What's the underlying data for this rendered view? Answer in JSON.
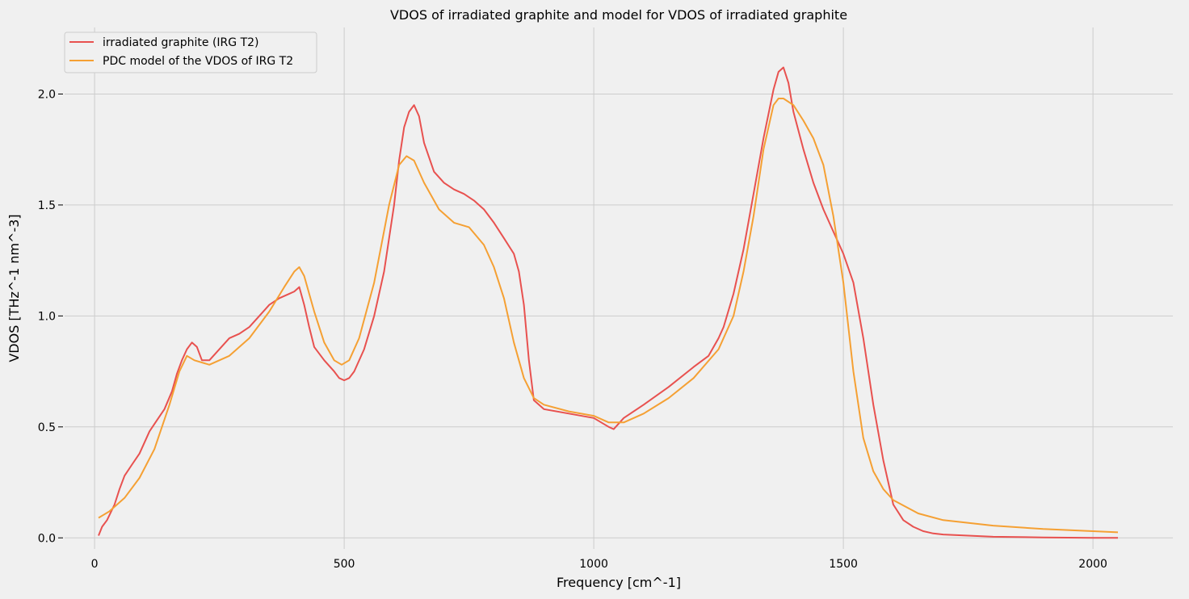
{
  "chart_data": {
    "type": "line",
    "title": "VDOS of irradiated graphite and model for VDOS of irradiated graphite",
    "xlabel": "Frequency [cm^-1]",
    "ylabel": "VDOS [THz^-1 nm^-3]",
    "xlim": [
      -60,
      2160
    ],
    "ylim": [
      -0.05,
      2.3
    ],
    "xticks": [
      0,
      500,
      1000,
      1500,
      2000
    ],
    "xtick_labels": [
      "0",
      "500",
      "1000",
      "1500",
      "2000"
    ],
    "yticks": [
      0.0,
      0.5,
      1.0,
      1.5,
      2.0
    ],
    "ytick_labels": [
      "0.0",
      "0.5",
      "1.0",
      "1.5",
      "2.0"
    ],
    "grid": true,
    "legend_position": "top-left",
    "colors": {
      "series_1": "#e8514f",
      "series_2": "#f5a033",
      "grid": "#cccccc",
      "background": "#f0f0f0"
    },
    "series": [
      {
        "name": "irradiated graphite (IRG T2)",
        "x": [
          8,
          15,
          25,
          40,
          50,
          60,
          75,
          90,
          110,
          125,
          140,
          155,
          165,
          175,
          185,
          195,
          205,
          215,
          230,
          250,
          270,
          290,
          310,
          330,
          350,
          370,
          390,
          400,
          410,
          420,
          430,
          440,
          460,
          480,
          490,
          500,
          510,
          520,
          540,
          560,
          580,
          600,
          610,
          620,
          630,
          640,
          650,
          660,
          680,
          700,
          720,
          740,
          760,
          780,
          800,
          820,
          840,
          850,
          860,
          870,
          880,
          900,
          950,
          1000,
          1030,
          1040,
          1060,
          1100,
          1150,
          1200,
          1230,
          1250,
          1260,
          1280,
          1300,
          1320,
          1340,
          1360,
          1370,
          1380,
          1390,
          1400,
          1420,
          1440,
          1460,
          1480,
          1500,
          1520,
          1540,
          1560,
          1580,
          1600,
          1620,
          1640,
          1660,
          1680,
          1700,
          1750,
          1800,
          1900,
          2000,
          2050
        ],
        "y": [
          0.01,
          0.05,
          0.08,
          0.15,
          0.22,
          0.28,
          0.33,
          0.38,
          0.48,
          0.53,
          0.58,
          0.66,
          0.74,
          0.8,
          0.85,
          0.88,
          0.86,
          0.8,
          0.8,
          0.85,
          0.9,
          0.92,
          0.95,
          1.0,
          1.05,
          1.08,
          1.1,
          1.11,
          1.13,
          1.05,
          0.95,
          0.86,
          0.8,
          0.75,
          0.72,
          0.71,
          0.72,
          0.75,
          0.85,
          1.0,
          1.2,
          1.5,
          1.7,
          1.85,
          1.92,
          1.95,
          1.9,
          1.78,
          1.65,
          1.6,
          1.57,
          1.55,
          1.52,
          1.48,
          1.42,
          1.35,
          1.28,
          1.2,
          1.05,
          0.8,
          0.62,
          0.58,
          0.56,
          0.54,
          0.5,
          0.49,
          0.54,
          0.6,
          0.68,
          0.77,
          0.82,
          0.9,
          0.95,
          1.1,
          1.3,
          1.55,
          1.8,
          2.02,
          2.1,
          2.12,
          2.05,
          1.92,
          1.75,
          1.6,
          1.48,
          1.38,
          1.28,
          1.15,
          0.9,
          0.6,
          0.35,
          0.15,
          0.08,
          0.05,
          0.03,
          0.02,
          0.015,
          0.01,
          0.005,
          0.002,
          0.0,
          0.0
        ]
      },
      {
        "name": "PDC model of the VDOS of IRG T2",
        "x": [
          8,
          30,
          60,
          90,
          120,
          150,
          170,
          185,
          200,
          230,
          270,
          310,
          350,
          380,
          400,
          410,
          420,
          440,
          460,
          480,
          495,
          510,
          530,
          560,
          590,
          610,
          625,
          640,
          660,
          690,
          720,
          750,
          780,
          800,
          820,
          840,
          860,
          880,
          900,
          950,
          1000,
          1030,
          1060,
          1100,
          1150,
          1200,
          1250,
          1280,
          1300,
          1320,
          1340,
          1360,
          1370,
          1380,
          1400,
          1420,
          1440,
          1460,
          1480,
          1500,
          1520,
          1540,
          1560,
          1580,
          1600,
          1650,
          1700,
          1800,
          1900,
          2000,
          2050
        ],
        "y": [
          0.09,
          0.12,
          0.18,
          0.27,
          0.4,
          0.6,
          0.75,
          0.82,
          0.8,
          0.78,
          0.82,
          0.9,
          1.02,
          1.13,
          1.2,
          1.22,
          1.18,
          1.02,
          0.88,
          0.8,
          0.78,
          0.8,
          0.9,
          1.15,
          1.5,
          1.68,
          1.72,
          1.7,
          1.6,
          1.48,
          1.42,
          1.4,
          1.32,
          1.22,
          1.08,
          0.88,
          0.72,
          0.63,
          0.6,
          0.57,
          0.55,
          0.52,
          0.52,
          0.56,
          0.63,
          0.72,
          0.85,
          1.0,
          1.2,
          1.45,
          1.75,
          1.95,
          1.98,
          1.98,
          1.95,
          1.88,
          1.8,
          1.68,
          1.45,
          1.15,
          0.75,
          0.45,
          0.3,
          0.22,
          0.17,
          0.11,
          0.08,
          0.055,
          0.04,
          0.03,
          0.025
        ]
      }
    ]
  }
}
